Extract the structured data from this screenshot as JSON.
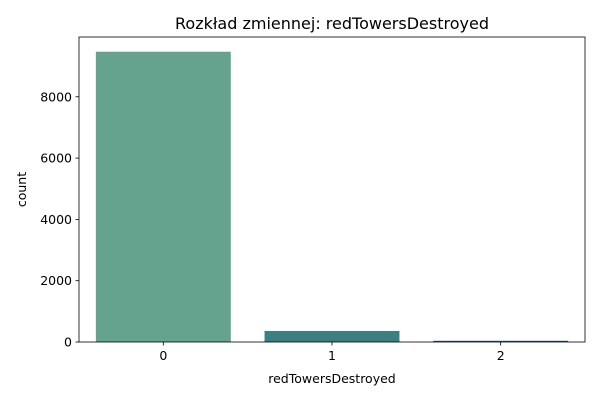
{
  "chart_data": {
    "type": "bar",
    "title": "Rozkład zmiennej: redTowersDestroyed",
    "xlabel": "redTowersDestroyed",
    "ylabel": "count",
    "categories": [
      "0",
      "1",
      "2"
    ],
    "values": [
      9470,
      360,
      40
    ],
    "colors": [
      "#66a38f",
      "#3b7f81",
      "#2e5a78"
    ],
    "ylim": [
      0,
      9950
    ],
    "yticks": [
      0,
      2000,
      4000,
      6000,
      8000
    ],
    "grid": false,
    "legend": "none"
  }
}
